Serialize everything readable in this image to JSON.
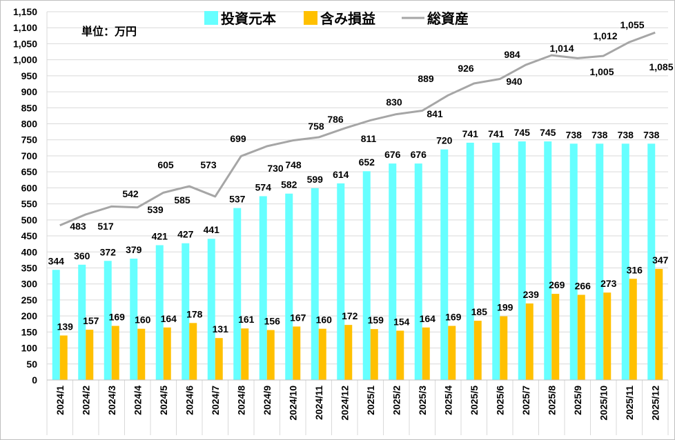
{
  "chart_data": {
    "type": "bar",
    "title": "",
    "unit_label": "単位：万円",
    "categories": [
      "2024/1",
      "2024/2",
      "2024/3",
      "2024/4",
      "2024/5",
      "2024/6",
      "2024/7",
      "2024/8",
      "2024/9",
      "2024/10",
      "2024/11",
      "2024/12",
      "2025/1",
      "2025/2",
      "2025/3",
      "2025/4",
      "2025/5",
      "2025/6",
      "2025/7",
      "2025/8",
      "2025/9",
      "2025/10",
      "2025/11",
      "2025/12"
    ],
    "series": [
      {
        "name": "投資元本",
        "type": "bar",
        "color": "#66FFFF",
        "values": [
          344,
          360,
          372,
          379,
          421,
          427,
          441,
          537,
          574,
          582,
          599,
          614,
          652,
          676,
          676,
          720,
          741,
          741,
          745,
          745,
          738,
          738,
          738,
          738
        ]
      },
      {
        "name": "含み損益",
        "type": "bar",
        "color": "#FFC000",
        "values": [
          139,
          157,
          169,
          160,
          164,
          178,
          131,
          161,
          156,
          167,
          160,
          172,
          159,
          154,
          164,
          169,
          185,
          199,
          239,
          269,
          266,
          273,
          316,
          347
        ]
      },
      {
        "name": "総資産",
        "type": "line",
        "color": "#A6A6A6",
        "values": [
          483,
          517,
          542,
          539,
          585,
          605,
          573,
          699,
          730,
          748,
          758,
          786,
          811,
          830,
          841,
          889,
          926,
          940,
          984,
          1014,
          1005,
          1012,
          1055,
          1085
        ]
      }
    ],
    "ylim": [
      0,
      1150
    ],
    "yticks": [
      0,
      50,
      100,
      150,
      200,
      250,
      300,
      350,
      400,
      450,
      500,
      550,
      600,
      650,
      700,
      750,
      800,
      850,
      900,
      950,
      1000,
      1050,
      1100,
      1150
    ],
    "grid": true,
    "legend": "top-center",
    "xlabel": "",
    "ylabel": ""
  }
}
